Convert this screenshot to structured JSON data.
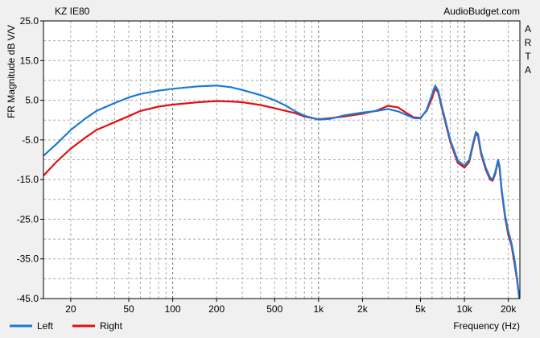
{
  "header": {
    "title": "KZ IE80",
    "source": "AudioBudget.com"
  },
  "side_label": [
    "A",
    "R",
    "T",
    "A"
  ],
  "chart_data": {
    "type": "line",
    "xlabel": "Frequency (Hz)",
    "ylabel": "FR Magnitude dB V/V",
    "x_scale": "log",
    "xlim": [
      13,
      24000
    ],
    "ylim": [
      -45,
      25
    ],
    "grid": true,
    "legend_position": "bottom-left",
    "x_ticks": [
      {
        "value": 20,
        "label": "20"
      },
      {
        "value": 50,
        "label": "50"
      },
      {
        "value": 100,
        "label": "100"
      },
      {
        "value": 200,
        "label": "200"
      },
      {
        "value": 500,
        "label": "500"
      },
      {
        "value": 1000,
        "label": "1k"
      },
      {
        "value": 2000,
        "label": "2k"
      },
      {
        "value": 5000,
        "label": "5k"
      },
      {
        "value": 10000,
        "label": "10k"
      },
      {
        "value": 20000,
        "label": "20k"
      }
    ],
    "y_ticks": [
      {
        "value": 25,
        "label": "25.0"
      },
      {
        "value": 15,
        "label": "15.0"
      },
      {
        "value": 5,
        "label": "5.0"
      },
      {
        "value": -5,
        "label": "-5.0"
      },
      {
        "value": -15,
        "label": "-15.0"
      },
      {
        "value": -25,
        "label": "-25.0"
      },
      {
        "value": -35,
        "label": "-35.0"
      },
      {
        "value": -45,
        "label": "-45.0"
      }
    ],
    "series": [
      {
        "name": "Left",
        "color": "#1a7ad6",
        "points": [
          [
            13,
            -9
          ],
          [
            16,
            -6
          ],
          [
            20,
            -2.5
          ],
          [
            25,
            0.3
          ],
          [
            30,
            2.3
          ],
          [
            40,
            4.3
          ],
          [
            50,
            5.7
          ],
          [
            60,
            6.6
          ],
          [
            80,
            7.4
          ],
          [
            100,
            7.9
          ],
          [
            150,
            8.5
          ],
          [
            200,
            8.7
          ],
          [
            250,
            8.3
          ],
          [
            300,
            7.6
          ],
          [
            400,
            6.3
          ],
          [
            500,
            5
          ],
          [
            600,
            3.6
          ],
          [
            700,
            2.1
          ],
          [
            800,
            1.1
          ],
          [
            1000,
            0.1
          ],
          [
            1200,
            0.3
          ],
          [
            1500,
            1.2
          ],
          [
            2000,
            1.9
          ],
          [
            2500,
            2.3
          ],
          [
            3000,
            2.8
          ],
          [
            3500,
            2.2
          ],
          [
            4000,
            1.3
          ],
          [
            4500,
            0.5
          ],
          [
            5000,
            0.4
          ],
          [
            5500,
            2.5
          ],
          [
            6000,
            6.5
          ],
          [
            6300,
            8.7
          ],
          [
            6600,
            7.5
          ],
          [
            7000,
            3.5
          ],
          [
            8000,
            -5
          ],
          [
            9000,
            -10.2
          ],
          [
            10000,
            -11.5
          ],
          [
            10800,
            -10
          ],
          [
            11500,
            -5.5
          ],
          [
            12000,
            -3
          ],
          [
            12400,
            -3.5
          ],
          [
            13000,
            -8
          ],
          [
            14000,
            -12
          ],
          [
            15000,
            -14.5
          ],
          [
            15600,
            -15
          ],
          [
            16300,
            -13
          ],
          [
            17000,
            -10
          ],
          [
            17400,
            -11.5
          ],
          [
            18000,
            -17.5
          ],
          [
            19000,
            -24
          ],
          [
            20000,
            -28
          ],
          [
            21000,
            -31
          ],
          [
            22000,
            -35
          ],
          [
            23000,
            -40
          ],
          [
            23800,
            -45
          ]
        ]
      },
      {
        "name": "Right",
        "color": "#e01010",
        "points": [
          [
            13,
            -14
          ],
          [
            16,
            -10.5
          ],
          [
            20,
            -7.2
          ],
          [
            25,
            -4.5
          ],
          [
            30,
            -2.5
          ],
          [
            40,
            -0.5
          ],
          [
            50,
            1
          ],
          [
            60,
            2.3
          ],
          [
            80,
            3.4
          ],
          [
            100,
            3.9
          ],
          [
            150,
            4.5
          ],
          [
            200,
            4.8
          ],
          [
            250,
            4.7
          ],
          [
            300,
            4.5
          ],
          [
            400,
            3.8
          ],
          [
            500,
            3
          ],
          [
            600,
            2.3
          ],
          [
            700,
            1.7
          ],
          [
            800,
            0.9
          ],
          [
            1000,
            0.2
          ],
          [
            1200,
            0.5
          ],
          [
            1500,
            0.9
          ],
          [
            2000,
            1.6
          ],
          [
            2500,
            2.4
          ],
          [
            3000,
            3.6
          ],
          [
            3500,
            3.2
          ],
          [
            4000,
            1.8
          ],
          [
            4500,
            0.7
          ],
          [
            5000,
            0.6
          ],
          [
            5500,
            2.3
          ],
          [
            6000,
            5.5
          ],
          [
            6300,
            8
          ],
          [
            6600,
            7
          ],
          [
            7000,
            3
          ],
          [
            8000,
            -5.5
          ],
          [
            9000,
            -10.8
          ],
          [
            10000,
            -12
          ],
          [
            10800,
            -10.5
          ],
          [
            11500,
            -6
          ],
          [
            12000,
            -3.3
          ],
          [
            12400,
            -4
          ],
          [
            13000,
            -8.5
          ],
          [
            14000,
            -12.5
          ],
          [
            15000,
            -15
          ],
          [
            15600,
            -15.3
          ],
          [
            16300,
            -13.5
          ],
          [
            17000,
            -10.3
          ],
          [
            17400,
            -12
          ],
          [
            18000,
            -18
          ],
          [
            19000,
            -24.5
          ],
          [
            20000,
            -29
          ],
          [
            21000,
            -31.5
          ],
          [
            22000,
            -36
          ],
          [
            23000,
            -40.5
          ],
          [
            23800,
            -45
          ]
        ]
      }
    ]
  }
}
